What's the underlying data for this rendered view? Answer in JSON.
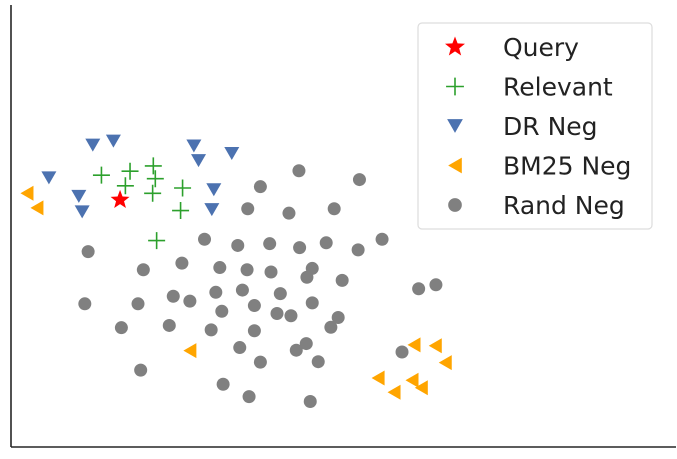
{
  "chart_data": {
    "type": "scatter",
    "title": "",
    "xlabel": "",
    "ylabel": "",
    "xlim": [
      0,
      100
    ],
    "ylim": [
      0,
      100
    ],
    "grid": false,
    "axis_ticks": false,
    "legend_position": "top-right",
    "series": [
      {
        "name": "Query",
        "marker": "star",
        "color": "#ff0000",
        "points": [
          [
            16.4,
            55.9
          ]
        ]
      },
      {
        "name": "Relevant",
        "marker": "plus",
        "color": "#2ca02c",
        "points": [
          [
            13.6,
            61.5
          ],
          [
            17.9,
            62.4
          ],
          [
            17.2,
            59.1
          ],
          [
            21.4,
            63.6
          ],
          [
            21.7,
            60.7
          ],
          [
            21.3,
            57.4
          ],
          [
            25.8,
            58.6
          ],
          [
            25.5,
            53.5
          ],
          [
            21.9,
            46.7
          ]
        ]
      },
      {
        "name": "DR Neg",
        "marker": "triangle-down",
        "color": "#4c72b0",
        "points": [
          [
            12.3,
            68.3
          ],
          [
            15.4,
            69.2
          ],
          [
            27.5,
            68.1
          ],
          [
            33.2,
            66.4
          ],
          [
            28.2,
            64.8
          ],
          [
            5.7,
            60.9
          ],
          [
            10.2,
            56.7
          ],
          [
            10.7,
            53.2
          ],
          [
            30.5,
            58.2
          ],
          [
            30.2,
            53.7
          ]
        ]
      },
      {
        "name": "BM25 Neg",
        "marker": "triangle-left",
        "color": "#ffa500",
        "points": [
          [
            2.4,
            57.4
          ],
          [
            3.9,
            54.1
          ],
          [
            26.9,
            21.8
          ],
          [
            60.6,
            23.1
          ],
          [
            63.8,
            22.9
          ],
          [
            65.3,
            19.1
          ],
          [
            55.2,
            15.6
          ],
          [
            60.3,
            15.1
          ],
          [
            61.7,
            13.4
          ],
          [
            57.6,
            12.4
          ]
        ]
      },
      {
        "name": "Rand Neg",
        "marker": "circle",
        "color": "#808080",
        "points": [
          [
            37.5,
            58.9
          ],
          [
            43.3,
            62.5
          ],
          [
            52.4,
            60.5
          ],
          [
            35.6,
            53.9
          ],
          [
            41.8,
            52.9
          ],
          [
            48.6,
            53.9
          ],
          [
            11.6,
            44.2
          ],
          [
            29.1,
            47.0
          ],
          [
            34.1,
            45.6
          ],
          [
            38.9,
            46.0
          ],
          [
            43.4,
            45.1
          ],
          [
            47.4,
            46.2
          ],
          [
            52.2,
            44.6
          ],
          [
            55.8,
            47.0
          ],
          [
            19.9,
            40.1
          ],
          [
            25.7,
            41.6
          ],
          [
            31.4,
            40.6
          ],
          [
            35.5,
            40.1
          ],
          [
            39.1,
            39.6
          ],
          [
            44.5,
            38.4
          ],
          [
            11.1,
            32.4
          ],
          [
            19.1,
            32.4
          ],
          [
            24.4,
            34.1
          ],
          [
            26.9,
            33.0
          ],
          [
            30.8,
            35.0
          ],
          [
            34.8,
            35.5
          ],
          [
            40.5,
            34.7
          ],
          [
            49.8,
            37.7
          ],
          [
            61.3,
            35.8
          ],
          [
            63.9,
            36.7
          ],
          [
            31.7,
            30.7
          ],
          [
            36.6,
            32.0
          ],
          [
            40.0,
            30.2
          ],
          [
            45.3,
            32.6
          ],
          [
            16.6,
            27.0
          ],
          [
            23.8,
            27.5
          ],
          [
            30.1,
            26.5
          ],
          [
            36.6,
            26.3
          ],
          [
            42.1,
            29.7
          ],
          [
            49.2,
            29.3
          ],
          [
            34.4,
            22.5
          ],
          [
            37.5,
            19.2
          ],
          [
            42.9,
            21.9
          ],
          [
            46.2,
            19.3
          ],
          [
            19.5,
            17.4
          ],
          [
            31.9,
            14.2
          ],
          [
            35.8,
            11.4
          ],
          [
            45.0,
            10.3
          ],
          [
            44.4,
            23.4
          ],
          [
            58.8,
            21.5
          ],
          [
            48.1,
            27.1
          ],
          [
            45.3,
            40.4
          ]
        ]
      }
    ]
  }
}
